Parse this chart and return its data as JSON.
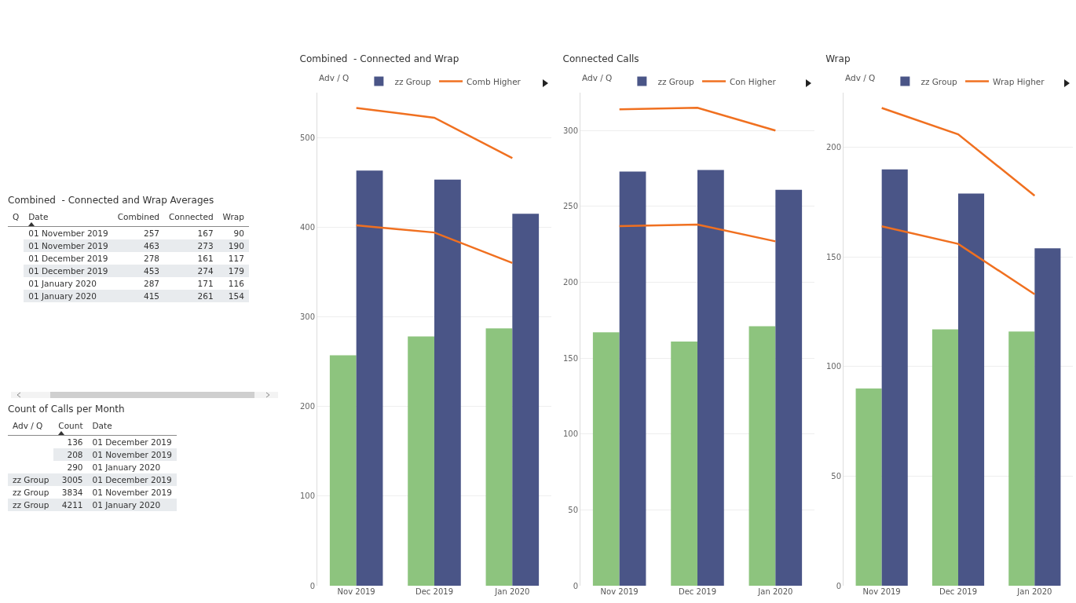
{
  "chart_data": [
    {
      "type": "other",
      "title": "Combined  - Connected and Wrap Averages",
      "categories": [
        "Q",
        "Date",
        "Combined",
        "Connected",
        "Wrap"
      ],
      "cells": [
        [
          null,
          "01 November 2019",
          "257",
          "167",
          "90"
        ],
        [
          null,
          "01 November 2019",
          "463",
          "273",
          "190"
        ],
        [
          null,
          "01 December 2019",
          "278",
          "161",
          "117"
        ],
        [
          null,
          "01 December 2019",
          "453",
          "274",
          "179"
        ],
        [
          null,
          "01 January 2020",
          "287",
          "171",
          "116"
        ],
        [
          null,
          "01 January 2020",
          "415",
          "261",
          "154"
        ]
      ]
    },
    {
      "type": "other",
      "title": "Count of Calls per Month",
      "categories": [
        "Adv / Q",
        "Count",
        "Date"
      ],
      "cells": [
        [
          null,
          "136",
          "01 December 2019"
        ],
        [
          null,
          "208",
          "01 November 2019"
        ],
        [
          null,
          "290",
          "01 January 2020"
        ],
        [
          "zz Group",
          "3005",
          "01 December 2019"
        ],
        [
          "zz Group",
          "3834",
          "01 November 2019"
        ],
        [
          "zz Group",
          "4211",
          "01 January 2020"
        ]
      ]
    },
    {
      "type": "bar",
      "title": "Combined  - Connected and Wrap",
      "legend_title": "Adv / Q",
      "categories": [
        "Nov 2019",
        "Dec 2019",
        "Jan 2020"
      ],
      "series": [
        {
          "color": "#8dc47e",
          "values": [
            257,
            278,
            287
          ]
        },
        {
          "name": "zz Group",
          "color": "#4a5587",
          "values": [
            463,
            453,
            415
          ]
        },
        {
          "name": "Comb Higher",
          "type": "line",
          "color": "#f07020",
          "values": [
            533,
            522,
            477
          ]
        },
        {
          "type": "line",
          "color": "#f07020",
          "values": [
            402,
            394,
            360
          ]
        }
      ],
      "ylim": [
        0,
        550
      ],
      "yticks": [
        0,
        100,
        200,
        300,
        400,
        500
      ],
      "grid": "y",
      "legend": "top",
      "marker": "none",
      "line_style": "solid"
    },
    {
      "type": "bar",
      "title": "Connected Calls",
      "legend_title": "Adv / Q",
      "categories": [
        "Nov 2019",
        "Dec 2019",
        "Jan 2020"
      ],
      "series": [
        {
          "color": "#8dc47e",
          "values": [
            167,
            161,
            171
          ]
        },
        {
          "name": "zz Group",
          "color": "#4a5587",
          "values": [
            273,
            274,
            261
          ]
        },
        {
          "name": "Con Higher",
          "type": "line",
          "color": "#f07020",
          "values": [
            314,
            315,
            300
          ]
        },
        {
          "type": "line",
          "color": "#f07020",
          "values": [
            237,
            238,
            227
          ]
        }
      ],
      "ylim": [
        0,
        325
      ],
      "yticks": [
        0,
        50,
        100,
        150,
        200,
        250,
        300
      ],
      "grid": "y",
      "legend": "top",
      "marker": "none",
      "line_style": "solid"
    },
    {
      "type": "bar",
      "title": "Wrap",
      "legend_title": "Adv / Q",
      "categories": [
        "Nov 2019",
        "Dec 2019",
        "Jan 2020"
      ],
      "series": [
        {
          "color": "#8dc47e",
          "values": [
            90,
            117,
            116
          ]
        },
        {
          "name": "zz Group",
          "color": "#4a5587",
          "values": [
            190,
            179,
            154
          ]
        },
        {
          "name": "Wrap Higher",
          "type": "line",
          "color": "#f07020",
          "values": [
            218,
            206,
            178
          ]
        },
        {
          "type": "line",
          "color": "#f07020",
          "values": [
            164,
            156,
            133
          ]
        }
      ],
      "ylim": [
        0,
        225
      ],
      "yticks": [
        0,
        50,
        100,
        150,
        200
      ],
      "grid": "y",
      "legend": "top",
      "marker": "none",
      "line_style": "solid"
    }
  ]
}
